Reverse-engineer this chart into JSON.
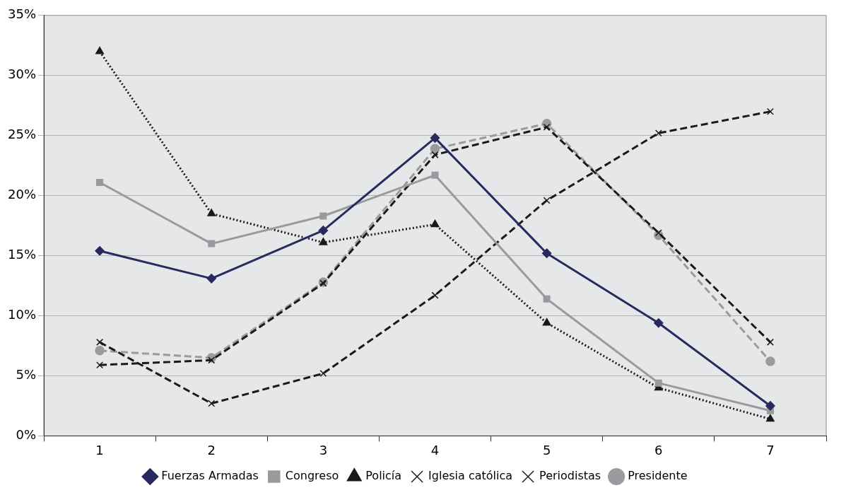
{
  "chart_data": {
    "type": "line",
    "categories": [
      "1",
      "2",
      "3",
      "4",
      "5",
      "6",
      "7"
    ],
    "ylim": [
      0,
      35
    ],
    "yticks": [
      {
        "value": 0,
        "label": "0%"
      },
      {
        "value": 5,
        "label": "5%"
      },
      {
        "value": 10,
        "label": "10%"
      },
      {
        "value": 15,
        "label": "15%"
      },
      {
        "value": 20,
        "label": "20%"
      },
      {
        "value": 25,
        "label": "25%"
      },
      {
        "value": 30,
        "label": "30%"
      },
      {
        "value": 35,
        "label": "35%"
      }
    ],
    "grid": "y",
    "legend": "bottom",
    "series": [
      {
        "name": "Fuerzas Armadas",
        "color": "#262a5e",
        "marker": "diamond",
        "line_style": "solid",
        "values": [
          15.4,
          13.1,
          17.1,
          24.8,
          15.2,
          9.4,
          2.5
        ]
      },
      {
        "name": "Congreso",
        "color": "#999a9d",
        "marker": "square",
        "line_style": "solid",
        "values": [
          21.1,
          16.0,
          18.3,
          21.7,
          11.4,
          4.4,
          2.1
        ]
      },
      {
        "name": "Policía",
        "color": "#1a1a1a",
        "marker": "triangle",
        "line_style": "dotted",
        "values": [
          32.0,
          18.5,
          16.1,
          17.6,
          9.4,
          4.0,
          1.4
        ]
      },
      {
        "name": "Iglesia católica",
        "color": "#1a1a1a",
        "marker": "cross",
        "line_style": "dashed",
        "values": [
          5.9,
          6.3,
          12.7,
          23.4,
          25.7,
          16.9,
          7.8
        ]
      },
      {
        "name": "Periodistas",
        "color": "#1a1a1a",
        "marker": "cross",
        "line_style": "dashed",
        "values": [
          7.8,
          2.7,
          5.2,
          11.7,
          19.6,
          25.2,
          27.0
        ]
      },
      {
        "name": "Presidente",
        "color": "#9a9b9e",
        "marker": "circle",
        "line_style": "dashed",
        "values": [
          7.1,
          6.5,
          12.8,
          23.9,
          26.0,
          16.7,
          6.2
        ]
      }
    ]
  }
}
